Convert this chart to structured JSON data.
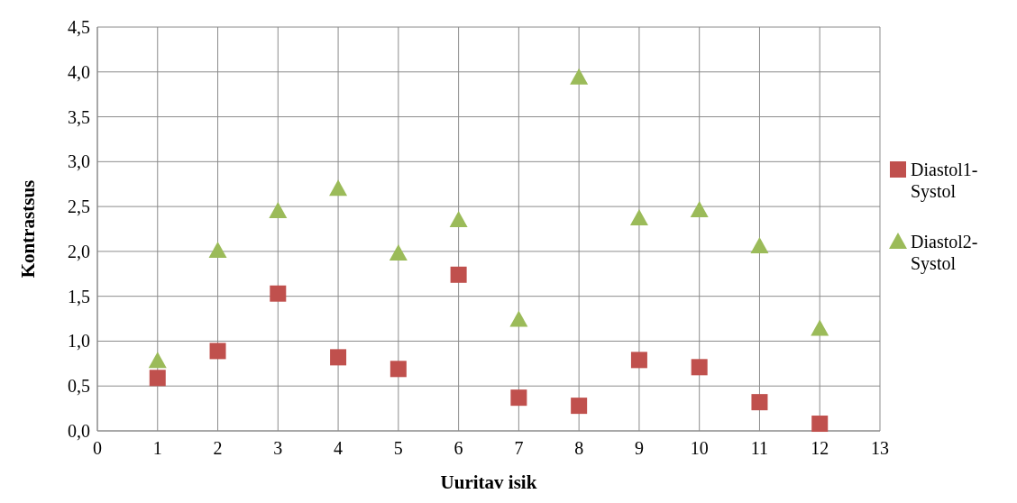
{
  "chart_data": {
    "type": "scatter",
    "xlabel": "Uuritav isik",
    "ylabel": "Kontrastsus",
    "x": [
      1,
      2,
      3,
      4,
      5,
      6,
      7,
      8,
      9,
      10,
      11,
      12
    ],
    "series": [
      {
        "name": "Diastol1-Systol",
        "color": "#c0504d",
        "marker": "square",
        "values": [
          0.59,
          0.89,
          1.53,
          0.82,
          0.69,
          1.74,
          0.37,
          0.28,
          0.79,
          0.71,
          0.32,
          0.08
        ]
      },
      {
        "name": "Diastol2-Systol",
        "color": "#9bbb59",
        "marker": "triangle",
        "values": [
          0.78,
          2.01,
          2.45,
          2.7,
          1.98,
          2.35,
          1.24,
          3.94,
          2.37,
          2.46,
          2.06,
          1.14
        ]
      }
    ],
    "xlim": [
      0,
      13
    ],
    "xticks": [
      0,
      1,
      2,
      3,
      4,
      5,
      6,
      7,
      8,
      9,
      10,
      11,
      12,
      13
    ],
    "ylim": [
      0,
      4.5
    ],
    "yticks": [
      {
        "value": 0,
        "label": "0,0"
      },
      {
        "value": 0.5,
        "label": "0,5"
      },
      {
        "value": 1,
        "label": "1,0"
      },
      {
        "value": 1.5,
        "label": "1,5"
      },
      {
        "value": 2,
        "label": "2,0"
      },
      {
        "value": 2.5,
        "label": "2,5"
      },
      {
        "value": 3,
        "label": "3,0"
      },
      {
        "value": 3.5,
        "label": "3,5"
      },
      {
        "value": 4,
        "label": "4,0"
      },
      {
        "value": 4.5,
        "label": "4,5"
      }
    ],
    "grid": true,
    "legend": "right"
  }
}
